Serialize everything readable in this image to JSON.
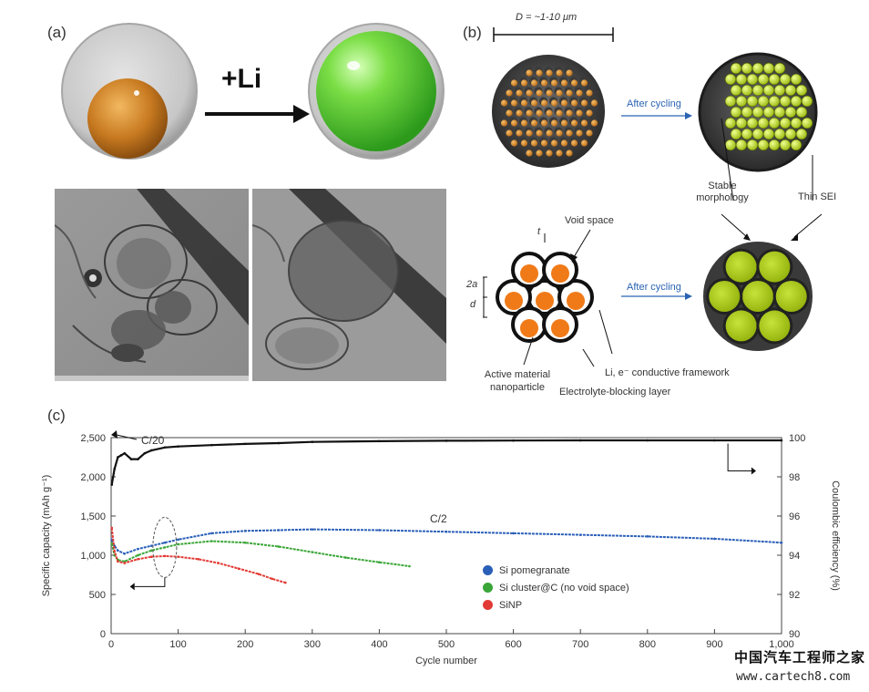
{
  "panel_a": {
    "label": "(a)",
    "arrow_text": "+Li"
  },
  "panel_b": {
    "label": "(b)",
    "dimension": "D = ~1-10 μm",
    "after_cycling_top": "After cycling",
    "after_cycling_bottom": "After cycling",
    "stable_morphology": "Stable morphology",
    "thin_sei": "Thin SEI",
    "void_space": "Void space",
    "t_label": "t",
    "two_a_label": "2a",
    "d_label": "d",
    "active_material": "Active material nanoparticle",
    "conductive_framework": "Li, e⁻ conductive framework",
    "electrolyte_blocking": "Electrolyte-blocking layer"
  },
  "panel_c": {
    "label": "(c)",
    "c20_label": "C/20",
    "c2_label": "C/2"
  },
  "chart_data": {
    "type": "line",
    "xlabel": "Cycle number",
    "ylabel": "Specific capacity (mAh g⁻¹)",
    "y2label": "Coulombic efficiency (%)",
    "xlim": [
      0,
      1000
    ],
    "ylim": [
      0,
      2500
    ],
    "y2lim": [
      90,
      100
    ],
    "x_ticks": [
      "0",
      "100",
      "200",
      "300",
      "400",
      "500",
      "600",
      "700",
      "800",
      "900",
      "1,000"
    ],
    "y_ticks": [
      "0",
      "500",
      "1,000",
      "1,500",
      "2,000",
      "2,500"
    ],
    "y2_ticks": [
      "90",
      "92",
      "94",
      "96",
      "98",
      "100"
    ],
    "legend": [
      {
        "name": "Si pomegranate",
        "color": "#2a5fb8"
      },
      {
        "name": "Si cluster@C (no void space)",
        "color": "#3aa637"
      },
      {
        "name": "SiNP",
        "color": "#e23a35"
      }
    ],
    "series": [
      {
        "name": "Si pomegranate",
        "color": "#2a5fb8",
        "axis": "left",
        "x": [
          1,
          5,
          10,
          20,
          40,
          60,
          80,
          100,
          150,
          200,
          250,
          300,
          400,
          500,
          600,
          700,
          800,
          900,
          1000
        ],
        "y": [
          1200,
          1120,
          1060,
          1020,
          1080,
          1120,
          1160,
          1200,
          1280,
          1310,
          1320,
          1330,
          1320,
          1300,
          1280,
          1260,
          1240,
          1210,
          1160
        ]
      },
      {
        "name": "Si cluster@C (no void space)",
        "color": "#3aa637",
        "axis": "left",
        "x": [
          1,
          5,
          10,
          20,
          40,
          60,
          80,
          100,
          150,
          200,
          250,
          300,
          350,
          400,
          445
        ],
        "y": [
          1150,
          1000,
          940,
          920,
          1000,
          1060,
          1100,
          1140,
          1180,
          1160,
          1110,
          1040,
          970,
          910,
          860
        ]
      },
      {
        "name": "SiNP",
        "color": "#e23a35",
        "axis": "left",
        "x": [
          1,
          5,
          10,
          20,
          40,
          60,
          80,
          100,
          130,
          160,
          190,
          220,
          240,
          260
        ],
        "y": [
          1350,
          1050,
          920,
          900,
          950,
          980,
          990,
          980,
          950,
          900,
          830,
          760,
          700,
          650
        ]
      },
      {
        "name": "Coulombic efficiency",
        "color": "#111111",
        "axis": "right",
        "x": [
          1,
          5,
          10,
          15,
          20,
          30,
          40,
          50,
          60,
          80,
          100,
          150,
          200,
          250,
          300,
          400,
          500,
          600,
          700,
          800,
          900,
          1000
        ],
        "y": [
          97.6,
          98.4,
          99.0,
          99.1,
          99.2,
          98.9,
          98.9,
          99.2,
          99.35,
          99.5,
          99.55,
          99.62,
          99.68,
          99.72,
          99.78,
          99.82,
          99.84,
          99.85,
          99.86,
          99.86,
          99.86,
          99.86
        ]
      }
    ]
  },
  "watermark": {
    "line1": "中国汽车工程师之家",
    "line2": "www.cartech8.com"
  }
}
